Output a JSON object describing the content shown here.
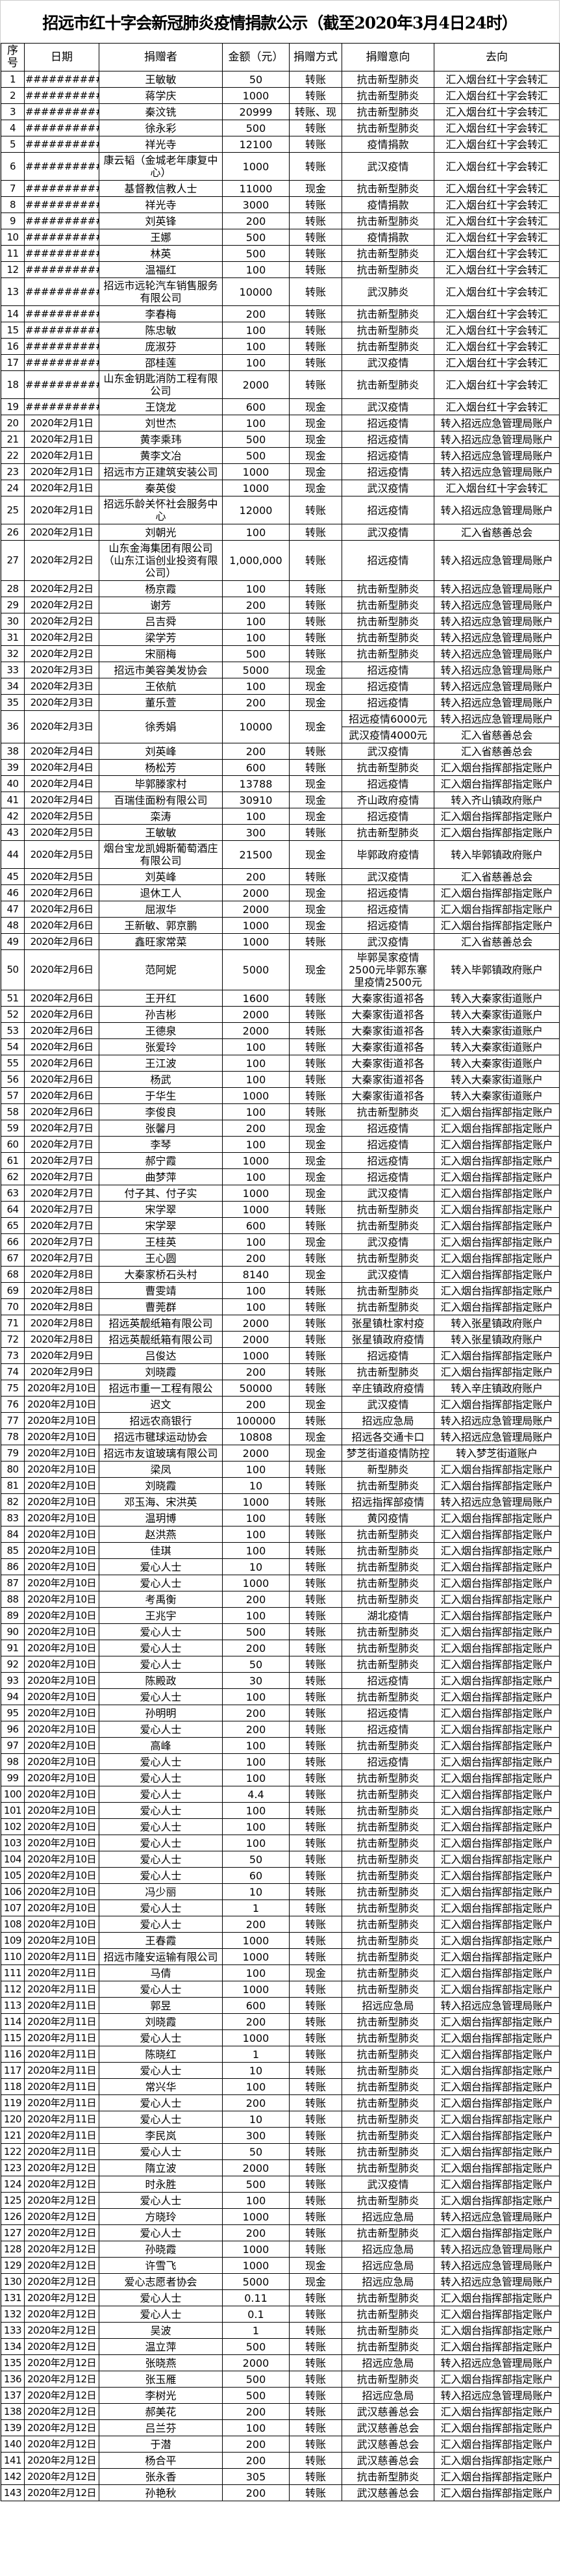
{
  "title": "招远市红十字会新冠肺炎疫情捐款公示（截至2020年3月4日24时）",
  "headers": [
    "序号",
    "日期",
    "捐赠者",
    "金额（元）",
    "捐赠方式",
    "捐赠意向",
    "去向"
  ],
  "rows": [
    [
      "1",
      "############",
      "王敏敏",
      "50",
      "转账",
      "抗击新型肺炎",
      "汇入烟台红十字会转汇"
    ],
    [
      "2",
      "############",
      "蒋学庆",
      "1000",
      "转账",
      "抗击新型肺炎",
      "汇入烟台红十字会转汇"
    ],
    [
      "3",
      "############",
      "秦汶铣",
      "20999",
      "转账、现",
      "抗击新型肺炎",
      "汇入烟台红十字会转汇"
    ],
    [
      "4",
      "############",
      "徐永彩",
      "500",
      "转账",
      "抗击新型肺炎",
      "汇入烟台红十字会转汇"
    ],
    [
      "5",
      "############",
      "祥光寺",
      "12100",
      "转账",
      "疫情捐款",
      "汇入烟台红十字会转汇"
    ],
    [
      "6",
      "############",
      "康云韬（金城老年康复中心）",
      "1000",
      "转账",
      "武汉疫情",
      "汇入烟台红十字会转汇"
    ],
    [
      "7",
      "############",
      "基督教信教人士",
      "11000",
      "现金",
      "抗击新型肺炎",
      "汇入烟台红十字会转汇"
    ],
    [
      "8",
      "############",
      "祥光寺",
      "3000",
      "转账",
      "疫情捐款",
      "汇入烟台红十字会转汇"
    ],
    [
      "9",
      "############",
      "刘英锋",
      "200",
      "转账",
      "抗击新型肺炎",
      "汇入烟台红十字会转汇"
    ],
    [
      "10",
      "############",
      "王娜",
      "500",
      "转账",
      "疫情捐款",
      "汇入烟台红十字会转汇"
    ],
    [
      "11",
      "############",
      "林英",
      "500",
      "转账",
      "抗击新型肺炎",
      "汇入烟台红十字会转汇"
    ],
    [
      "12",
      "############",
      "温福红",
      "100",
      "转账",
      "抗击新型肺炎",
      "汇入烟台红十字会转汇"
    ],
    [
      "13",
      "############",
      "招远市远轮汽车销售服务有限公司",
      "10000",
      "转账",
      "武汉肺炎",
      "汇入烟台红十字会转汇"
    ],
    [
      "14",
      "############",
      "李春梅",
      "200",
      "转账",
      "抗击新型肺炎",
      "汇入烟台红十字会转汇"
    ],
    [
      "15",
      "############",
      "陈忠敏",
      "100",
      "转账",
      "抗击新型肺炎",
      "汇入烟台红十字会转汇"
    ],
    [
      "16",
      "############",
      "庞淑芬",
      "100",
      "转账",
      "抗击新型肺炎",
      "汇入烟台红十字会转汇"
    ],
    [
      "17",
      "############",
      "邵桂莲",
      "100",
      "转账",
      "武汉疫情",
      "汇入烟台红十字会转汇"
    ],
    [
      "18",
      "############",
      "山东金钥匙消防工程有限公司",
      "2000",
      "转账",
      "抗击新型肺炎",
      "汇入烟台红十字会转汇"
    ],
    [
      "19",
      "############",
      "王饶龙",
      "600",
      "现金",
      "武汉疫情",
      "汇入烟台红十字会转汇"
    ],
    [
      "20",
      "2020年2月1日",
      "刘世杰",
      "100",
      "现金",
      "招远疫情",
      "转入招远应急管理局账户"
    ],
    [
      "21",
      "2020年2月1日",
      "黄李乘玮",
      "500",
      "现金",
      "招远疫情",
      "转入招远应急管理局账户"
    ],
    [
      "22",
      "2020年2月1日",
      "黄李文冶",
      "500",
      "现金",
      "招远疫情",
      "转入招远应急管理局账户"
    ],
    [
      "23",
      "2020年2月1日",
      "招远市方正建筑安装公司",
      "1000",
      "现金",
      "招远疫情",
      "转入招远应急管理局账户"
    ],
    [
      "24",
      "2020年2月1日",
      "秦英俊",
      "1000",
      "现金",
      "武汉疫情",
      "汇入烟台红十字会转汇"
    ],
    [
      "25",
      "2020年2月1日",
      "招远乐龄关怀社会服务中心",
      "12000",
      "转账",
      "招远疫情",
      "转入招远应急管理局账户"
    ],
    [
      "26",
      "2020年2月1日",
      "刘朝光",
      "100",
      "转账",
      "武汉疫情",
      "汇入省慈善总会"
    ],
    [
      "27",
      "2020年2月2日",
      "山东金海集团有限公司（山东江诣创业投资有限公司）",
      "1,000,000",
      "转账",
      "招远疫情",
      "转入招远应急管理局账户"
    ],
    [
      "28",
      "2020年2月2日",
      "杨京霞",
      "100",
      "转账",
      "抗击新型肺炎",
      "转入招远应急管理局账户"
    ],
    [
      "29",
      "2020年2月2日",
      "谢芳",
      "200",
      "转账",
      "抗击新型肺炎",
      "转入招远应急管理局账户"
    ],
    [
      "30",
      "2020年2月2日",
      "吕吉舜",
      "100",
      "转账",
      "抗击新型肺炎",
      "转入招远应急管理局账户"
    ],
    [
      "31",
      "2020年2月2日",
      "梁学芳",
      "100",
      "转账",
      "抗击新型肺炎",
      "转入招远应急管理局账户"
    ],
    [
      "32",
      "2020年2月2日",
      "宋丽梅",
      "500",
      "转账",
      "抗击新型肺炎",
      "转入招远应急管理局账户"
    ],
    [
      "33",
      "2020年2月3日",
      "招远市美容美发协会",
      "5000",
      "现金",
      "招远疫情",
      "转入招远应急管理局账户"
    ],
    [
      "34",
      "2020年2月3日",
      "王依航",
      "100",
      "现金",
      "招远疫情",
      "转入招远应急管理局账户"
    ],
    [
      "35",
      "2020年2月3日",
      "董乐萱",
      "200",
      "现金",
      "招远疫情",
      "转入招远应急管理局账户"
    ],
    [
      "36",
      "2020年2月3日",
      "徐秀娟",
      "10000",
      "现金",
      [
        "招远疫情6000元",
        "武汉疫情4000元"
      ],
      [
        "转入招远应急管理局账户",
        "汇入省慈善总会"
      ]
    ],
    [
      "38",
      "2020年2月4日",
      "刘英峰",
      "200",
      "转账",
      "武汉疫情",
      "汇入省慈善总会"
    ],
    [
      "39",
      "2020年2月4日",
      "杨松芳",
      "600",
      "转账",
      "抗击新型肺炎",
      "汇入烟台指挥部指定账户"
    ],
    [
      "40",
      "2020年2月4日",
      "毕郭滕家村",
      "13788",
      "现金",
      "招远疫情",
      "汇入烟台指挥部指定账户"
    ],
    [
      "41",
      "2020年2月4日",
      "百瑞佳面粉有限公司",
      "30910",
      "现金",
      "齐山政府疫情",
      "转入齐山镇政府账户"
    ],
    [
      "42",
      "2020年2月5日",
      "栾涛",
      "100",
      "现金",
      "招远疫情",
      "汇入烟台指挥部指定账户"
    ],
    [
      "43",
      "2020年2月5日",
      "王敏敏",
      "300",
      "转账",
      "抗击新型肺炎",
      "汇入烟台指挥部指定账户"
    ],
    [
      "44",
      "2020年2月5日",
      "烟台宝龙凯姆斯葡萄酒庄有限公司",
      "21500",
      "现金",
      "毕郭政府疫情",
      "转入毕郭镇政府账户"
    ],
    [
      "45",
      "2020年2月5日",
      "刘英峰",
      "200",
      "转账",
      "武汉疫情",
      "汇入省慈善总会"
    ],
    [
      "46",
      "2020年2月6日",
      "退休工人",
      "2000",
      "现金",
      "招远疫情",
      "汇入烟台指挥部指定账户"
    ],
    [
      "47",
      "2020年2月6日",
      "屈淑华",
      "2000",
      "现金",
      "招远疫情",
      "汇入烟台指挥部指定账户"
    ],
    [
      "48",
      "2020年2月6日",
      "王新敏、郭京鹏",
      "1000",
      "现金",
      "招远疫情",
      "汇入烟台指挥部指定账户"
    ],
    [
      "49",
      "2020年2月6日",
      "鑫旺家常菜",
      "1000",
      "转账",
      "武汉疫情",
      "汇入省慈善总会"
    ],
    [
      "50",
      "2020年2月6日",
      "范阿妮",
      "5000",
      "现金",
      "毕郭吴家疫情2500元毕郭东寨里疫情2500元",
      "转入毕郭镇政府账户"
    ],
    [
      "51",
      "2020年2月6日",
      "王开红",
      "1600",
      "转账",
      "大秦家街道祁各",
      "转入大秦家街道账户"
    ],
    [
      "52",
      "2020年2月6日",
      "孙吉彬",
      "2000",
      "转账",
      "大秦家街道祁各",
      "转入大秦家街道账户"
    ],
    [
      "53",
      "2020年2月6日",
      "王德泉",
      "2000",
      "转账",
      "大秦家街道祁各",
      "转入大秦家街道账户"
    ],
    [
      "54",
      "2020年2月6日",
      "张爱玲",
      "100",
      "转账",
      "大秦家街道祁各",
      "转入大秦家街道账户"
    ],
    [
      "55",
      "2020年2月6日",
      "王江波",
      "100",
      "转账",
      "大秦家街道祁各",
      "转入大秦家街道账户"
    ],
    [
      "56",
      "2020年2月6日",
      "杨武",
      "100",
      "转账",
      "大秦家街道祁各",
      "转入大秦家街道账户"
    ],
    [
      "57",
      "2020年2月6日",
      "于华生",
      "1000",
      "转账",
      "大秦家街道祁各",
      "转入大秦家街道账户"
    ],
    [
      "58",
      "2020年2月6日",
      "李俊良",
      "100",
      "转账",
      "抗击新型肺炎",
      "汇入烟台指挥部指定账户"
    ],
    [
      "59",
      "2020年2月7日",
      "张馨月",
      "200",
      "现金",
      "招远疫情",
      "汇入烟台指挥部指定账户"
    ],
    [
      "60",
      "2020年2月7日",
      "李琴",
      "100",
      "现金",
      "招远疫情",
      "汇入烟台指挥部指定账户"
    ],
    [
      "61",
      "2020年2月7日",
      "郝宁霞",
      "1000",
      "现金",
      "招远疫情",
      "汇入烟台指挥部指定账户"
    ],
    [
      "62",
      "2020年2月7日",
      "曲梦萍",
      "100",
      "现金",
      "招远疫情",
      "汇入烟台指挥部指定账户"
    ],
    [
      "63",
      "2020年2月7日",
      "付子其、付子实",
      "1000",
      "现金",
      "武汉疫情",
      "汇入烟台指挥部指定账户"
    ],
    [
      "64",
      "2020年2月7日",
      "宋学翠",
      "1000",
      "转账",
      "抗击新型肺炎",
      "汇入烟台指挥部指定账户"
    ],
    [
      "65",
      "2020年2月7日",
      "宋学翠",
      "600",
      "转账",
      "抗击新型肺炎",
      "汇入烟台指挥部指定账户"
    ],
    [
      "66",
      "2020年2月7日",
      "王桂英",
      "100",
      "现金",
      "武汉疫情",
      "汇入烟台指挥部指定账户"
    ],
    [
      "67",
      "2020年2月7日",
      "王心圆",
      "200",
      "转账",
      "抗击新型肺炎",
      "汇入烟台指挥部指定账户"
    ],
    [
      "68",
      "2020年2月8日",
      "大秦家桥石头村",
      "8140",
      "现金",
      "武汉疫情",
      "汇入烟台指挥部指定账户"
    ],
    [
      "69",
      "2020年2月8日",
      "曹雯靖",
      "100",
      "转账",
      "抗击新型肺炎",
      "汇入烟台指挥部指定账户"
    ],
    [
      "70",
      "2020年2月8日",
      "曹莞群",
      "100",
      "转账",
      "抗击新型肺炎",
      "汇入烟台指挥部指定账户"
    ],
    [
      "71",
      "2020年2月8日",
      "招远英靓纸箱有限公司",
      "2000",
      "转账",
      "张星镇杜家村疫",
      "转入张星镇政府账户"
    ],
    [
      "72",
      "2020年2月8日",
      "招远英靓纸箱有限公司",
      "2000",
      "转账",
      "张星镇政府疫情",
      "转入张星镇政府账户"
    ],
    [
      "73",
      "2020年2月9日",
      "吕俊达",
      "1000",
      "转账",
      "招远疫情",
      "汇入烟台指挥部指定账户"
    ],
    [
      "74",
      "2020年2月9日",
      "刘晓霞",
      "200",
      "转账",
      "抗击新型肺炎",
      "汇入烟台指挥部指定账户"
    ],
    [
      "75",
      "2020年2月10日",
      "招远市重一工程有限公",
      "50000",
      "转账",
      "辛庄镇政府疫情",
      "转入辛庄镇政府账户"
    ],
    [
      "76",
      "2020年2月10日",
      "迟文",
      "200",
      "现金",
      "武汉疫情",
      "汇入烟台指挥部指定账户"
    ],
    [
      "77",
      "2020年2月10日",
      "招远农商银行",
      "100000",
      "转账",
      "招远应急局",
      "转入招远应急管理局账户"
    ],
    [
      "78",
      "2020年2月10日",
      "招远市毽球运动协会",
      "10808",
      "现金",
      "招远各交通卡口",
      "转入招远应急管理局账户"
    ],
    [
      "79",
      "2020年2月10日",
      "招远市友谊玻璃有限公司",
      "2000",
      "现金",
      "梦芝街道疫情防控",
      "转入梦芝街道账户"
    ],
    [
      "80",
      "2020年2月10日",
      "梁凤",
      "100",
      "转账",
      "新型肺炎",
      "汇入烟台指挥部指定账户"
    ],
    [
      "81",
      "2020年2月10日",
      "刘晓霞",
      "10",
      "转账",
      "抗击新型肺炎",
      "汇入烟台指挥部指定账户"
    ],
    [
      "82",
      "2020年2月10日",
      "邓玉海、宋洪英",
      "1000",
      "转账",
      "招远指挥部疫情",
      "转入招远应急管理局账户"
    ],
    [
      "83",
      "2020年2月10日",
      "温玥博",
      "100",
      "转账",
      "黄冈疫情",
      "汇入烟台指挥部指定账户"
    ],
    [
      "84",
      "2020年2月10日",
      "赵洪燕",
      "100",
      "转账",
      "抗击新型肺炎",
      "汇入烟台指挥部指定账户"
    ],
    [
      "85",
      "2020年2月10日",
      "佳琪",
      "100",
      "转账",
      "抗击新型肺炎",
      "汇入烟台指挥部指定账户"
    ],
    [
      "86",
      "2020年2月10日",
      "爱心人士",
      "10",
      "转账",
      "抗击新型肺炎",
      "汇入烟台指挥部指定账户"
    ],
    [
      "87",
      "2020年2月10日",
      "爱心人士",
      "1000",
      "转账",
      "抗击新型肺炎",
      "汇入烟台指挥部指定账户"
    ],
    [
      "88",
      "2020年2月10日",
      "考禹衡",
      "200",
      "转账",
      "抗击新型肺炎",
      "汇入烟台指挥部指定账户"
    ],
    [
      "89",
      "2020年2月10日",
      "王兆宇",
      "100",
      "转账",
      "湖北疫情",
      "汇入烟台指挥部指定账户"
    ],
    [
      "90",
      "2020年2月10日",
      "爱心人士",
      "500",
      "转账",
      "抗击新型肺炎",
      "汇入烟台指挥部指定账户"
    ],
    [
      "91",
      "2020年2月10日",
      "爱心人士",
      "200",
      "转账",
      "抗击新型肺炎",
      "汇入烟台指挥部指定账户"
    ],
    [
      "92",
      "2020年2月10日",
      "爱心人士",
      "50",
      "转账",
      "抗击新型肺炎",
      "汇入烟台指挥部指定账户"
    ],
    [
      "93",
      "2020年2月10日",
      "陈殿政",
      "30",
      "转账",
      "招远疫情",
      "汇入烟台指挥部指定账户"
    ],
    [
      "94",
      "2020年2月10日",
      "爱心人士",
      "100",
      "转账",
      "抗击新型肺炎",
      "汇入烟台指挥部指定账户"
    ],
    [
      "95",
      "2020年2月10日",
      "孙明明",
      "200",
      "转账",
      "招远疫情",
      "汇入烟台指挥部指定账户"
    ],
    [
      "96",
      "2020年2月10日",
      "爱心人士",
      "200",
      "转账",
      "招远疫情",
      "汇入烟台指挥部指定账户"
    ],
    [
      "97",
      "2020年2月10日",
      "高峰",
      "100",
      "转账",
      "抗击新型肺炎",
      "汇入烟台指挥部指定账户"
    ],
    [
      "98",
      "2020年2月10日",
      "爱心人士",
      "100",
      "转账",
      "招远疫情",
      "汇入烟台指挥部指定账户"
    ],
    [
      "99",
      "2020年2月10日",
      "爱心人士",
      "100",
      "转账",
      "抗击新型肺炎",
      "汇入烟台指挥部指定账户"
    ],
    [
      "100",
      "2020年2月10日",
      "爱心人士",
      "4.4",
      "转账",
      "抗击新型肺炎",
      "汇入烟台指挥部指定账户"
    ],
    [
      "101",
      "2020年2月10日",
      "爱心人士",
      "100",
      "转账",
      "抗击新型肺炎",
      "汇入烟台指挥部指定账户"
    ],
    [
      "102",
      "2020年2月10日",
      "爱心人士",
      "100",
      "转账",
      "抗击新型肺炎",
      "汇入烟台指挥部指定账户"
    ],
    [
      "103",
      "2020年2月10日",
      "爱心人士",
      "100",
      "转账",
      "抗击新型肺炎",
      "汇入烟台指挥部指定账户"
    ],
    [
      "104",
      "2020年2月10日",
      "爱心人士",
      "50",
      "转账",
      "抗击新型肺炎",
      "汇入烟台指挥部指定账户"
    ],
    [
      "105",
      "2020年2月10日",
      "爱心人士",
      "60",
      "转账",
      "抗击新型肺炎",
      "汇入烟台指挥部指定账户"
    ],
    [
      "106",
      "2020年2月10日",
      "冯少丽",
      "10",
      "转账",
      "抗击新型肺炎",
      "汇入烟台指挥部指定账户"
    ],
    [
      "107",
      "2020年2月10日",
      "爱心人士",
      "1",
      "转账",
      "抗击新型肺炎",
      "汇入烟台指挥部指定账户"
    ],
    [
      "108",
      "2020年2月10日",
      "爱心人士",
      "200",
      "转账",
      "抗击新型肺炎",
      "汇入烟台指挥部指定账户"
    ],
    [
      "109",
      "2020年2月10日",
      "王春霞",
      "1000",
      "转账",
      "抗击新型肺炎",
      "汇入烟台指挥部指定账户"
    ],
    [
      "110",
      "2020年2月11日",
      "招远市隆安运输有限公司",
      "1000",
      "转账",
      "抗击新型肺炎",
      "汇入烟台指挥部指定账户"
    ],
    [
      "111",
      "2020年2月11日",
      "马倩",
      "100",
      "现金",
      "抗击新型肺炎",
      "汇入烟台指挥部指定账户"
    ],
    [
      "112",
      "2020年2月11日",
      "爱心人士",
      "1000",
      "转账",
      "抗击新型肺炎",
      "汇入烟台指挥部指定账户"
    ],
    [
      "113",
      "2020年2月11日",
      "郭昱",
      "600",
      "转账",
      "招远应急局",
      "转入招远应急管理局账户"
    ],
    [
      "114",
      "2020年2月11日",
      "刘晓霞",
      "200",
      "转账",
      "抗击新型肺炎",
      "汇入烟台指挥部指定账户"
    ],
    [
      "115",
      "2020年2月11日",
      "爱心人士",
      "1000",
      "转账",
      "抗击新型肺炎",
      "汇入烟台指挥部指定账户"
    ],
    [
      "116",
      "2020年2月11日",
      "陈晓红",
      "1",
      "转账",
      "抗击新型肺炎",
      "汇入烟台指挥部指定账户"
    ],
    [
      "117",
      "2020年2月11日",
      "爱心人士",
      "10",
      "转账",
      "抗击新型肺炎",
      "汇入烟台指挥部指定账户"
    ],
    [
      "118",
      "2020年2月11日",
      "常兴华",
      "100",
      "转账",
      "抗击新型肺炎",
      "汇入烟台指挥部指定账户"
    ],
    [
      "119",
      "2020年2月11日",
      "爱心人士",
      "200",
      "转账",
      "抗击新型肺炎",
      "汇入烟台指挥部指定账户"
    ],
    [
      "120",
      "2020年2月11日",
      "爱心人士",
      "10",
      "转账",
      "抗击新型肺炎",
      "汇入烟台指挥部指定账户"
    ],
    [
      "121",
      "2020年2月11日",
      "李民岚",
      "300",
      "转账",
      "抗击新型肺炎",
      "汇入烟台指挥部指定账户"
    ],
    [
      "122",
      "2020年2月11日",
      "爱心人士",
      "50",
      "转账",
      "抗击新型肺炎",
      "汇入烟台指挥部指定账户"
    ],
    [
      "123",
      "2020年2月12日",
      "隋立波",
      "2000",
      "转账",
      "抗击新型肺炎",
      "汇入烟台指挥部指定账户"
    ],
    [
      "124",
      "2020年2月12日",
      "时永胜",
      "500",
      "转账",
      "武汉疫情",
      "汇入烟台指挥部指定账户"
    ],
    [
      "125",
      "2020年2月12日",
      "爱心人士",
      "100",
      "转账",
      "抗击新型肺炎",
      "汇入烟台指挥部指定账户"
    ],
    [
      "126",
      "2020年2月12日",
      "方晓玲",
      "1000",
      "转账",
      "招远应急局",
      "转入招远应急管理局账户"
    ],
    [
      "127",
      "2020年2月12日",
      "爱心人士",
      "200",
      "转账",
      "抗击新型肺炎",
      "汇入烟台指挥部指定账户"
    ],
    [
      "128",
      "2020年2月12日",
      "孙晓霞",
      "1000",
      "转账",
      "招远应急局",
      "转入招远应急管理局账户"
    ],
    [
      "129",
      "2020年2月12日",
      "许雪飞",
      "1000",
      "现金",
      "招远应急局",
      "转入招远应急管理局账户"
    ],
    [
      "130",
      "2020年2月12日",
      "爱心志愿者协会",
      "5000",
      "现金",
      "招远应急局",
      "转入招远应急管理局账户"
    ],
    [
      "131",
      "2020年2月12日",
      "爱心人士",
      "0.11",
      "转账",
      "抗击新型肺炎",
      "汇入烟台指挥部指定账户"
    ],
    [
      "132",
      "2020年2月12日",
      "爱心人士",
      "0.1",
      "转账",
      "抗击新型肺炎",
      "汇入烟台指挥部指定账户"
    ],
    [
      "133",
      "2020年2月12日",
      "吴波",
      "1",
      "转账",
      "抗击新型肺炎",
      "汇入烟台指挥部指定账户"
    ],
    [
      "134",
      "2020年2月12日",
      "温立萍",
      "500",
      "转账",
      "抗击新型肺炎",
      "汇入烟台指挥部指定账户"
    ],
    [
      "135",
      "2020年2月12日",
      "张晓燕",
      "2000",
      "转账",
      "招远应急局",
      "转入招远应急管理局账户"
    ],
    [
      "136",
      "2020年2月12日",
      "张玉雁",
      "500",
      "转账",
      "抗击新型肺炎",
      "汇入烟台指挥部指定账户"
    ],
    [
      "137",
      "2020年2月12日",
      "李树光",
      "500",
      "转账",
      "招远应急局",
      "转入招远应急管理局账户"
    ],
    [
      "138",
      "2020年2月12日",
      "郝美花",
      "200",
      "转账",
      "武汉慈善总会",
      "汇入烟台指挥部指定账户"
    ],
    [
      "139",
      "2020年2月12日",
      "吕兰芬",
      "100",
      "转账",
      "武汉慈善总会",
      "汇入烟台指挥部指定账户"
    ],
    [
      "140",
      "2020年2月12日",
      "于潜",
      "200",
      "转账",
      "武汉慈善总会",
      "汇入烟台指挥部指定账户"
    ],
    [
      "141",
      "2020年2月12日",
      "杨合平",
      "200",
      "转账",
      "武汉慈善总会",
      "汇入烟台指挥部指定账户"
    ],
    [
      "142",
      "2020年2月12日",
      "张永香",
      "305",
      "转账",
      "抗击新型肺炎",
      "汇入烟台指挥部指定账户"
    ],
    [
      "143",
      "2020年2月12日",
      "孙艳秋",
      "200",
      "转账",
      "武汉慈善总会",
      "汇入烟台指挥部指定账户"
    ]
  ]
}
